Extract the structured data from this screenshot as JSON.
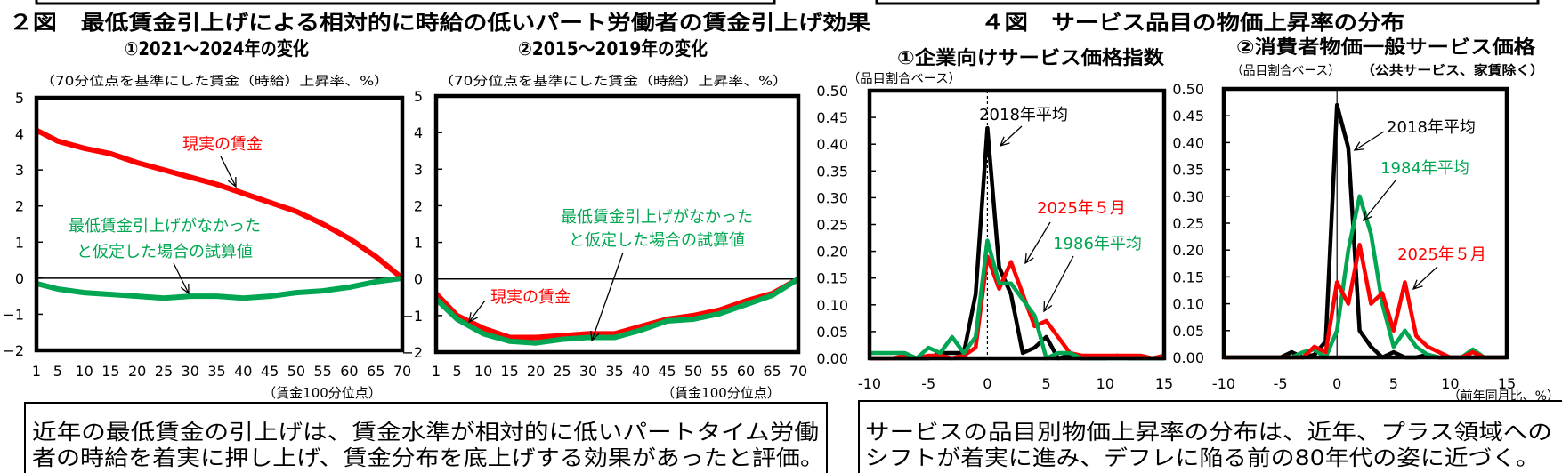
{
  "figure2": {
    "title": "２図　最低賃金引上げによる相対的に時給の低いパート労働者の賃金引上げ効果",
    "comment": [
      "近年の最低賃金の引上げは、賃金水準が相対的に低いパートタイム労働",
      "者の時給を着実に押し上げ、賃金分布を底上げする効果があったと評価。"
    ]
  },
  "figure4": {
    "title": "４図　サービス品目の物価上昇率の分布",
    "comment": [
      "サービスの品目別物価上昇率の分布は、近年、プラス領域への",
      "シフトが着実に進み、デフレに陥る前の80年代の姿に近づく。"
    ]
  },
  "colors": {
    "actual": "#ff0000",
    "counterfactual": "#00a651",
    "y2018": "#000000",
    "y2025": "#ff0000",
    "y1980s": "#00a651"
  },
  "chart_data": [
    {
      "type": "line",
      "title": "①2021～2024年の変化",
      "note": "（70分位点を基準にした賃金（時給）上昇率、%）",
      "xlabel": "（賃金100分位点）",
      "x": [
        1,
        5,
        10,
        15,
        20,
        25,
        30,
        35,
        40,
        45,
        50,
        55,
        60,
        65,
        70
      ],
      "xticks": [
        "1",
        "5",
        "10",
        "15",
        "20",
        "25",
        "30",
        "35",
        "40",
        "45",
        "50",
        "55",
        "60",
        "65",
        "70"
      ],
      "xlim": [
        1,
        70
      ],
      "ylim": [
        -2,
        5
      ],
      "yticks": [
        "5",
        "4",
        "3",
        "2",
        "1",
        "0",
        "−1",
        "−2"
      ],
      "series": [
        {
          "label": [
            "現実の賃金"
          ],
          "color": "#ff0000",
          "values": [
            4.1,
            3.8,
            3.6,
            3.45,
            3.2,
            3.0,
            2.8,
            2.6,
            2.35,
            2.1,
            1.85,
            1.5,
            1.1,
            0.6,
            0.0
          ]
        },
        {
          "label": [
            "最低賃金引上げがなかった",
            "と仮定した場合の試算値"
          ],
          "color": "#00a651",
          "values": [
            -0.15,
            -0.3,
            -0.4,
            -0.45,
            -0.5,
            -0.55,
            -0.5,
            -0.5,
            -0.55,
            -0.5,
            -0.4,
            -0.35,
            -0.25,
            -0.1,
            0.0
          ]
        }
      ]
    },
    {
      "type": "line",
      "title": "②2015～2019年の変化",
      "note": "（70分位点を基準にした賃金（時給）上昇率、%）",
      "xlabel": "（賃金100分位点）",
      "x": [
        1,
        5,
        10,
        15,
        20,
        25,
        30,
        35,
        40,
        45,
        50,
        55,
        60,
        65,
        70
      ],
      "xticks": [
        "1",
        "5",
        "10",
        "15",
        "20",
        "25",
        "30",
        "35",
        "40",
        "45",
        "50",
        "55",
        "60",
        "65",
        "70"
      ],
      "xlim": [
        1,
        70
      ],
      "ylim": [
        -2,
        5
      ],
      "yticks": [
        "5",
        "4",
        "3",
        "2",
        "1",
        "0",
        "−1",
        "−2"
      ],
      "series": [
        {
          "label": [
            "現実の賃金"
          ],
          "color": "#ff0000",
          "values": [
            -0.4,
            -1.0,
            -1.35,
            -1.6,
            -1.6,
            -1.55,
            -1.5,
            -1.5,
            -1.3,
            -1.1,
            -1.0,
            -0.85,
            -0.6,
            -0.4,
            0.0
          ]
        },
        {
          "label": [
            "最低賃金引上げがなかった",
            "と仮定した場合の試算値"
          ],
          "color": "#00a651",
          "values": [
            -0.55,
            -1.1,
            -1.5,
            -1.7,
            -1.75,
            -1.65,
            -1.6,
            -1.6,
            -1.4,
            -1.15,
            -1.1,
            -0.95,
            -0.7,
            -0.45,
            0.0
          ]
        }
      ]
    },
    {
      "type": "line",
      "title": "①企業向けサービス価格指数",
      "note": "（品目割合ベース）",
      "xlabel": "",
      "x": [
        -10,
        -9,
        -8,
        -7,
        -6,
        -5,
        -4,
        -3,
        -2,
        -1,
        0,
        1,
        2,
        3,
        4,
        5,
        6,
        7,
        8,
        9,
        10,
        11,
        12,
        13,
        14,
        15
      ],
      "xticks": [
        "-10",
        "-5",
        "0",
        "5",
        "10",
        "15"
      ],
      "xlim": [
        -10,
        15
      ],
      "ylim": [
        0,
        0.5
      ],
      "yticks": [
        "0.50",
        "0.45",
        "0.40",
        "0.35",
        "0.30",
        "0.25",
        "0.20",
        "0.15",
        "0.10",
        "0.05",
        "0.00"
      ],
      "series": [
        {
          "label": [
            "2018年平均"
          ],
          "color": "#000000",
          "values": [
            0,
            0,
            0,
            0,
            0,
            0,
            0.01,
            0.01,
            0.01,
            0.12,
            0.43,
            0.17,
            0.12,
            0.01,
            0.02,
            0.04,
            0,
            0.005,
            0,
            0,
            0,
            0.005,
            0,
            0,
            0,
            0
          ]
        },
        {
          "label": [
            "2025年５月"
          ],
          "color": "#ff0000",
          "values": [
            0,
            0,
            0,
            0.005,
            0,
            0.005,
            0.005,
            0,
            0.005,
            0.02,
            0.19,
            0.13,
            0.18,
            0.12,
            0.06,
            0.07,
            0.04,
            0.01,
            0.005,
            0.005,
            0.005,
            0.005,
            0.005,
            0.005,
            0,
            0.005
          ]
        },
        {
          "label": [
            "1986年平均"
          ],
          "color": "#00a651",
          "values": [
            0.01,
            0.01,
            0.01,
            0.01,
            0,
            0.02,
            0.01,
            0.04,
            0.01,
            0.04,
            0.22,
            0.14,
            0.14,
            0.11,
            0.08,
            0,
            0.01,
            0.01,
            0,
            0,
            0,
            0,
            0,
            0,
            0,
            0
          ]
        }
      ]
    },
    {
      "type": "line",
      "title": "②消費者物価一般サービス価格",
      "note": "（品目割合ベース）",
      "note2": "（公共サービス、家賃除く）",
      "xlabel": "（前年同月比、%）",
      "x": [
        -10,
        -9,
        -8,
        -7,
        -6,
        -5,
        -4,
        -3,
        -2,
        -1,
        0,
        1,
        2,
        3,
        4,
        5,
        6,
        7,
        8,
        9,
        10,
        11,
        12,
        13,
        14,
        15
      ],
      "xticks": [
        "-10",
        "-5",
        "0",
        "5",
        "10",
        "15"
      ],
      "xlim": [
        -10,
        15
      ],
      "ylim": [
        0,
        0.5
      ],
      "yticks": [
        "0.50",
        "0.45",
        "0.40",
        "0.35",
        "0.30",
        "0.25",
        "0.20",
        "0.15",
        "0.10",
        "0.05",
        "0.00"
      ],
      "series": [
        {
          "label": [
            "2018年平均"
          ],
          "color": "#000000",
          "values": [
            0,
            0,
            0,
            0,
            0,
            0,
            0.01,
            0,
            0.005,
            0.03,
            0.47,
            0.39,
            0.05,
            0.02,
            0,
            0.01,
            0,
            0,
            0.005,
            0,
            0,
            0,
            0,
            0,
            0,
            0
          ]
        },
        {
          "label": [
            "1984年平均"
          ],
          "color": "#00a651",
          "values": [
            0,
            0,
            0,
            0,
            0,
            0,
            0,
            0.01,
            0.015,
            0,
            0.05,
            0.2,
            0.3,
            0.23,
            0.1,
            0.02,
            0.05,
            0.02,
            0.005,
            0,
            0,
            0,
            0.015,
            0,
            0,
            0
          ]
        },
        {
          "label": [
            "2025年５月"
          ],
          "color": "#ff0000",
          "values": [
            0,
            0,
            0,
            0,
            0,
            0,
            0,
            0,
            0.02,
            0.01,
            0.14,
            0.1,
            0.21,
            0.1,
            0.12,
            0.05,
            0.14,
            0.04,
            0.02,
            0.01,
            0,
            0,
            0.01,
            0,
            0,
            0
          ]
        }
      ]
    }
  ]
}
